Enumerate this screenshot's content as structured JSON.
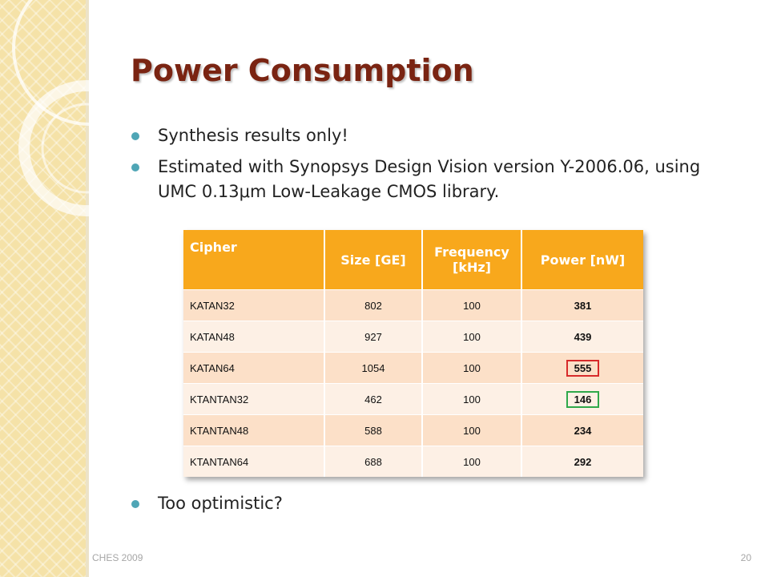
{
  "slide": {
    "title": "Power Consumption",
    "bullets": [
      "Synthesis results only!",
      "Estimated with Synopsys Design Vision version Y-2006.06, using UMC 0.13μm Low-Leakage CMOS library."
    ],
    "last_bullet": "Too optimistic?",
    "footer_left": "CHES 2009",
    "page_number": "20"
  },
  "table": {
    "headers": [
      "Cipher",
      "Size [GE]",
      "Frequency [kHz]",
      "Power [nW]"
    ],
    "rows": [
      {
        "cipher": "KATAN32",
        "size": "802",
        "frequency": "100",
        "power": "381",
        "highlight": ""
      },
      {
        "cipher": "KATAN48",
        "size": "927",
        "frequency": "100",
        "power": "439",
        "highlight": ""
      },
      {
        "cipher": "KATAN64",
        "size": "1054",
        "frequency": "100",
        "power": "555",
        "highlight": "red"
      },
      {
        "cipher": "KTANTAN32",
        "size": "462",
        "frequency": "100",
        "power": "146",
        "highlight": "green"
      },
      {
        "cipher": "KTANTAN48",
        "size": "588",
        "frequency": "100",
        "power": "234",
        "highlight": ""
      },
      {
        "cipher": "KTANTAN64",
        "size": "688",
        "frequency": "100",
        "power": "292",
        "highlight": ""
      }
    ]
  },
  "colors": {
    "title": "#7a2412",
    "bullet_dot": "#4fa6b6",
    "table_header": "#f8a81c",
    "row_odd": "#fce0c8",
    "row_even": "#fdf0e5",
    "highlight_red": "#d72a2a",
    "highlight_green": "#2fa84a"
  }
}
